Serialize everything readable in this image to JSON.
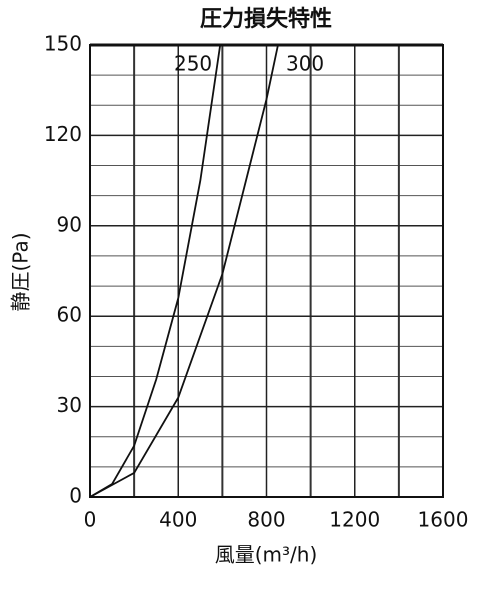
{
  "chart_data": {
    "type": "line",
    "title": "圧力損失特性",
    "x_label": "風量(m³/h)",
    "y_label": "静圧(Pa)",
    "series": [
      {
        "name": "250",
        "color": "#111111",
        "x": [
          0,
          100,
          200,
          300,
          400,
          500,
          590
        ],
        "values": [
          0,
          4.3,
          17,
          39,
          66,
          105,
          150
        ]
      },
      {
        "name": "300",
        "color": "#111111",
        "x": [
          0,
          200,
          400,
          600,
          800,
          852
        ],
        "values": [
          0,
          8,
          33,
          74,
          132,
          150
        ]
      }
    ],
    "xlim": [
      0,
      1600
    ],
    "xticks": [
      0,
      400,
      800,
      1200,
      1600
    ],
    "minor_xticks": [
      200,
      600,
      1000,
      1400
    ],
    "ylim": [
      0,
      150
    ],
    "yticks": [
      0,
      30,
      60,
      90,
      120,
      150
    ],
    "minor_yticks": [
      10,
      20,
      40,
      50,
      70,
      80,
      100,
      110,
      130,
      140
    ],
    "grid": true
  }
}
